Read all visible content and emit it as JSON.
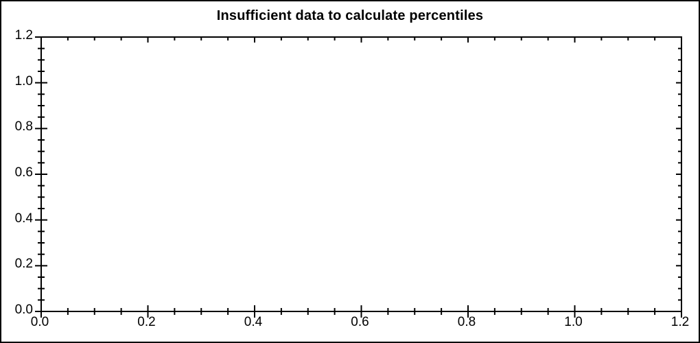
{
  "chart_data": {
    "type": "scatter",
    "title": "Insufficient data to calculate percentiles",
    "series": [],
    "x": [],
    "categories": [],
    "xlabel": "",
    "ylabel": "",
    "xlim": [
      0.0,
      1.2
    ],
    "ylim": [
      0.0,
      1.2
    ],
    "x_major_ticks": [
      0.0,
      0.2,
      0.4,
      0.6,
      0.8,
      1.0,
      1.2
    ],
    "y_major_ticks": [
      0.0,
      0.2,
      0.4,
      0.6,
      0.8,
      1.0,
      1.2
    ],
    "x_tick_labels": [
      "0.0",
      "0.2",
      "0.4",
      "0.6",
      "0.8",
      "1.0",
      "1.2"
    ],
    "y_tick_labels": [
      "0.0",
      "0.2",
      "0.4",
      "0.6",
      "0.8",
      "1.0",
      "1.2"
    ],
    "minor_tick_step": 0.05,
    "grid": false,
    "frame": "box",
    "legend": "none",
    "colors": {
      "axis": "#000000",
      "text": "#000000",
      "background": "#ffffff"
    }
  }
}
